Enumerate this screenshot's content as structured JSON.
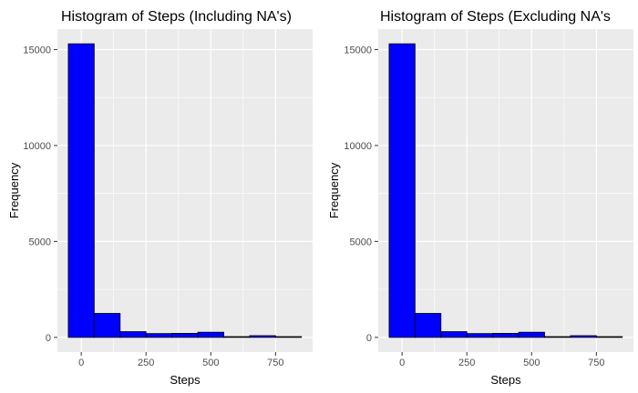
{
  "chart_data": [
    {
      "type": "bar",
      "title": "Histogram of Steps (Including NA's)",
      "xlabel": "Steps",
      "ylabel": "Frequency",
      "bins": [
        {
          "start": -50,
          "end": 50,
          "count": 15300
        },
        {
          "start": 50,
          "end": 150,
          "count": 1250
        },
        {
          "start": 150,
          "end": 250,
          "count": 300
        },
        {
          "start": 250,
          "end": 350,
          "count": 200
        },
        {
          "start": 350,
          "end": 450,
          "count": 210
        },
        {
          "start": 450,
          "end": 550,
          "count": 270
        },
        {
          "start": 550,
          "end": 650,
          "count": 40
        },
        {
          "start": 650,
          "end": 750,
          "count": 90
        },
        {
          "start": 750,
          "end": 850,
          "count": 40
        }
      ],
      "xlim": [
        -92,
        893
      ],
      "ylim": [
        -765,
        16065
      ],
      "x_ticks": [
        0,
        250,
        500,
        750
      ],
      "x_tick_labels": [
        "0",
        "250",
        "500",
        "750"
      ],
      "y_ticks": [
        0,
        5000,
        10000,
        15000
      ],
      "y_tick_labels": [
        "0",
        "5000",
        "10000",
        "15000"
      ],
      "grid": true,
      "fill_color": "#0000ff",
      "edge_color": "#000000",
      "panel_color": "#ebebeb"
    },
    {
      "type": "bar",
      "title": "Histogram of Steps (Excluding NA's",
      "xlabel": "Steps",
      "ylabel": "Frequency",
      "bins": [
        {
          "start": -50,
          "end": 50,
          "count": 15300
        },
        {
          "start": 50,
          "end": 150,
          "count": 1250
        },
        {
          "start": 150,
          "end": 250,
          "count": 300
        },
        {
          "start": 250,
          "end": 350,
          "count": 200
        },
        {
          "start": 350,
          "end": 450,
          "count": 210
        },
        {
          "start": 450,
          "end": 550,
          "count": 270
        },
        {
          "start": 550,
          "end": 650,
          "count": 40
        },
        {
          "start": 650,
          "end": 750,
          "count": 90
        },
        {
          "start": 750,
          "end": 850,
          "count": 40
        }
      ],
      "xlim": [
        -92,
        893
      ],
      "ylim": [
        -765,
        16065
      ],
      "x_ticks": [
        0,
        250,
        500,
        750
      ],
      "x_tick_labels": [
        "0",
        "250",
        "500",
        "750"
      ],
      "y_ticks": [
        0,
        5000,
        10000,
        15000
      ],
      "y_tick_labels": [
        "0",
        "5000",
        "10000",
        "15000"
      ],
      "grid": true,
      "fill_color": "#0000ff",
      "edge_color": "#000000",
      "panel_color": "#ebebeb"
    }
  ]
}
